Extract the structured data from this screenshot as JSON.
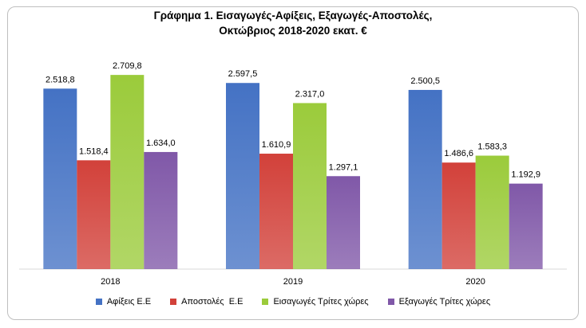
{
  "chart_data": {
    "type": "bar",
    "title_lines": [
      "Γράφημα 1. Εισαγωγές-Αφίξεις, Εξαγωγές-Αποστολές,",
      "Οκτώβριος 2018-2020 εκατ. €"
    ],
    "categories": [
      "2018",
      "2019",
      "2020"
    ],
    "series": [
      {
        "name": "Αφίξεις Ε.Ε",
        "values": [
          2518.8,
          2597.5,
          2500.5
        ],
        "labels": [
          "2.518,8",
          "2.597,5",
          "2.500,5"
        ],
        "color": "#4472C4"
      },
      {
        "name": "Αποστολές  Ε.Ε",
        "values": [
          1518.4,
          1610.9,
          1486.6
        ],
        "labels": [
          "1.518,4",
          "1.610,9",
          "1.486,6"
        ],
        "color": "#D2413A"
      },
      {
        "name": "Εισαγωγές Τρίτες χώρες",
        "values": [
          2709.8,
          2317.0,
          1583.3
        ],
        "labels": [
          "2.709,8",
          "2.317,0",
          "1.583,3"
        ],
        "color": "#9BCB3B"
      },
      {
        "name": "Εξαγωγές Τρίτες χώρες",
        "values": [
          1634.0,
          1297.1,
          1192.9
        ],
        "labels": [
          "1.634,0",
          "1.297,1",
          "1.192,9"
        ],
        "color": "#8058A8"
      }
    ],
    "ylim": [
      0,
      2800
    ],
    "grid": false,
    "legend_position": "bottom"
  }
}
